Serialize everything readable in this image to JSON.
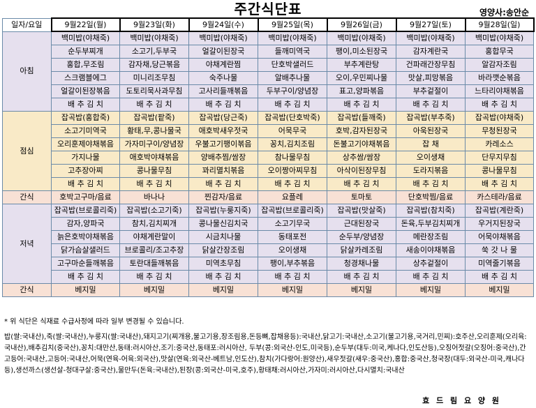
{
  "title": "주간식단표",
  "nutritionist": "영양사:송안순",
  "header": {
    "corner": "일자/요일",
    "days": [
      "9월22일(월)",
      "9월23일(화)",
      "9월24일(수)",
      "9월25일(목)",
      "9월26일(금)",
      "9월27일(토)",
      "9월28일(일)"
    ]
  },
  "breakfast": {
    "label": "아침",
    "rows": [
      [
        "백미밥(야채죽)",
        "백미밥(야채죽)",
        "백미밥(야채죽)",
        "백미밥(야채죽)",
        "백미밥(야채죽)",
        "백미밥(야채죽)",
        "백미밥(야채죽)"
      ],
      [
        "순두부찌개",
        "소고기,두부국",
        "얼갈이된장국",
        "들깨미역국",
        "팽이,미소된장국",
        "감자계란국",
        "홍합무국"
      ],
      [
        "홍합,무조림",
        "감자채,당근볶음",
        "야채계란찜",
        "단호박샐러드",
        "부추계란탕",
        "건파래간장무침",
        "알감자조림"
      ],
      [
        "스크램블에그",
        "미니리조무침",
        "숙주나물",
        "알배추나물",
        "오이,우민찌나물",
        "맛살,피망볶음",
        "바라깻순볶음"
      ],
      [
        "얼갈이된장볶음",
        "도토리묵사과무침",
        "고사리들깨볶음",
        "두부구이/양념장",
        "표고,양파볶음",
        "부추겉절이",
        "느타리야채볶음"
      ],
      [
        "배 추 김 치",
        "배 추 김 치",
        "배 추 김 치",
        "배 추 김 치",
        "배 추 김 치",
        "배 추 김 치",
        "배 추 김 치"
      ]
    ]
  },
  "lunch": {
    "label": "점심",
    "rows": [
      [
        "잡곡밥(홍합죽)",
        "잡곡밥(팥죽)",
        "잡곡밥(당근죽)",
        "잡곡밥(단호박죽)",
        "잡곡밥(들깨죽)",
        "잡곡밥(부추죽)",
        "잡곡밥(야채죽)"
      ],
      [
        "소고기미역국",
        "황태,무,콩나물국",
        "애호박새우젓국",
        "어묵무국",
        "호박,감자된장국",
        "아욱된장국",
        "무청된장국"
      ],
      [
        "오리훈제야채볶음",
        "가자미구이/양념장",
        "우불고기팽이볶음",
        "꽁치,김치조림",
        "돈불고기야채볶음",
        "잡 채",
        "카레소스"
      ],
      [
        "가지나물",
        "애호박야채볶음",
        "양배추찜/쌈장",
        "참나물무침",
        "상추쌈/쌈장",
        "오이생채",
        "단무지무침"
      ],
      [
        "고추장아찌",
        "콩나물무침",
        "꽈리멸치볶음",
        "오이짱아찌무침",
        "아삭이된장무침",
        "도라지볶음",
        "콩나물무침"
      ],
      [
        "배 추 김 치",
        "배 추 김 치",
        "배 추 김 치",
        "배 추 김 치",
        "배 추 김 치",
        "배 추 김 치",
        "배 추 김 치"
      ]
    ]
  },
  "snack": {
    "label": "간식",
    "items": [
      "호박고구마/음료",
      "바나나",
      "찐감자/음료",
      "요플레",
      "토마토",
      "단호박찜/음료",
      "카스테라/음료"
    ]
  },
  "dinner": {
    "label": "저녁",
    "rows": [
      [
        "잡곡밥(브로콜리죽)",
        "잡곡밥(소고기죽)",
        "잡곡밥(누룽지죽)",
        "잡곡밥(브로콜리죽)",
        "잡곡밥(맛살죽)",
        "잡곡밥(참치죽)",
        "잡곡밥(계란죽)"
      ],
      [
        "감자,양파국",
        "참치,김치찌개",
        "콩나물신김치국",
        "소고기무국",
        "근대된장국",
        "돈육,두부김치찌개",
        "우거지된장국"
      ],
      [
        "늙은호박야채볶음",
        "야채계란말이",
        "시금치나물",
        "동태포전",
        "순두부/양념장",
        "메란장조림",
        "어묵야채볶음"
      ],
      [
        "닭가슴살샐러드",
        "브로콜리/조고추장",
        "닭살간장조림",
        "오이생채",
        "닭살카레조림",
        "새송이야채볶음",
        "쑥 갓 나 물"
      ],
      [
        "고구마순들깨볶음",
        "토란대들깨볶음",
        "미역초무침",
        "팽이,부추볶음",
        "청경채나물",
        "상추겉절이",
        "미역줄기볶음"
      ],
      [
        "배 추 김 치",
        "배 추 김 치",
        "배 추 김 치",
        "배 추 김 치",
        "배 추 김 치",
        "배 추 김 치",
        "배 추 김 치"
      ]
    ]
  },
  "snack2": {
    "label": "간식",
    "items": [
      "베지밀",
      "베지밀",
      "베지밀",
      "베지밀",
      "베지밀",
      "베지밀",
      "베지밀"
    ]
  },
  "notes": {
    "line1": "* 위 식단은 식재료 수급사정에 따라 일부 변경될 수 있습니다.",
    "line2": "밥(쌀:국내산),죽(쌀:국내산),누룽지(쌀:국내산),돼지고기(찌개용,불고기용,장조림용,돈등뼈,잡채용등):국내산,닭고기:국내산,소고기(불고기용,국거리,민찌):호주산,오리훈제(오리육:국내산),배추김치(중국산),꽁치:대만산,동태:러시아산,조기:중국산,동태포:러시아산, 두부(콩:외국산-인도,미국등),순두부(대두:미국,케나다,인도산등),오징어젓갈(오징어:중국산),간고등어:국내산,고등어:국내산,어묵(연육-어육:외국산),맛살(연육:외국산-베트남,인도산),참치(가다랑어:원양산),새우젓갈(새우:중국산),홍합:중국산,청국장(대두:외국산-미국,캐나다등),생선까스(생선살-청대구살:중국산),물만두(돈육:국내산),된장(콩:외국산-미국,호주),황태채:러시아산,가자미:러시아산,다시멸치:국내산"
  },
  "footer": "효 드 림 요 양 원"
}
